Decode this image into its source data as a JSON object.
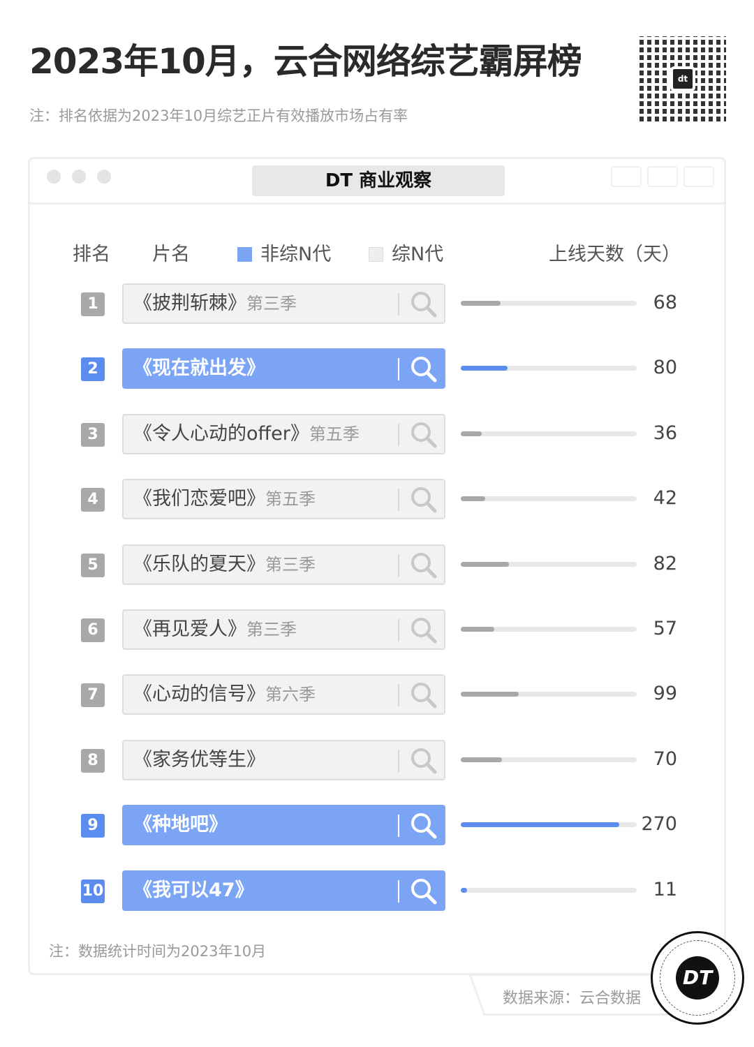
{
  "title": "2023年10月，云合网络综艺霸屏榜",
  "subtitle": "注：排名依据为2023年10月综艺正片有效播放市场占有率",
  "brand": "DT 商业观察",
  "logo_text": "DT",
  "header": {
    "rank": "排名",
    "name": "片名",
    "legend_non": "非综N代",
    "legend_n": "综N代",
    "days": "上线天数（天）"
  },
  "colors": {
    "highlight": "#7ba4f4",
    "bar_highlight": "#5b8def",
    "neutral": "#a8a8a8",
    "track": "#e8e8e8"
  },
  "footnote": "注：数据统计时间为2023年10月",
  "source": "数据来源：云合数据",
  "chart_data": {
    "type": "bar",
    "xlim": [
      0,
      300
    ],
    "legend": [
      {
        "name": "非综N代",
        "color": "#7ba4f4"
      },
      {
        "name": "综N代",
        "color": "#eeeeee"
      }
    ],
    "rows": [
      {
        "rank": "1",
        "title": "《披荆斩棘》",
        "season": "第三季",
        "days": 68,
        "n_series": true
      },
      {
        "rank": "2",
        "title": "《现在就出发》",
        "season": "",
        "days": 80,
        "n_series": false
      },
      {
        "rank": "3",
        "title": "《令人心动的offer》",
        "season": "第五季",
        "days": 36,
        "n_series": true
      },
      {
        "rank": "4",
        "title": "《我们恋爱吧》",
        "season": "第五季",
        "days": 42,
        "n_series": true
      },
      {
        "rank": "5",
        "title": "《乐队的夏天》",
        "season": "第三季",
        "days": 82,
        "n_series": true
      },
      {
        "rank": "6",
        "title": "《再见爱人》",
        "season": "第三季",
        "days": 57,
        "n_series": true
      },
      {
        "rank": "7",
        "title": "《心动的信号》",
        "season": "第六季",
        "days": 99,
        "n_series": true
      },
      {
        "rank": "8",
        "title": "《家务优等生》",
        "season": "",
        "days": 70,
        "n_series": true
      },
      {
        "rank": "9",
        "title": "《种地吧》",
        "season": "",
        "days": 270,
        "n_series": false
      },
      {
        "rank": "10",
        "title": "《我可以47》",
        "season": "",
        "days": 11,
        "n_series": false
      }
    ]
  }
}
